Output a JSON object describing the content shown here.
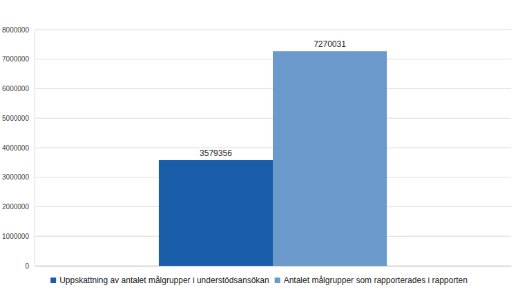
{
  "chart_data": {
    "type": "bar",
    "categories": [
      null
    ],
    "series": [
      {
        "name": "Uppskattning av antalet målgrupper i understödsansökan",
        "color": "#1a5ea9",
        "values": [
          3579356
        ]
      },
      {
        "name": "Antalet målgrupper som rapporterades i rapporten",
        "color": "#6b99cb",
        "values": [
          7270031
        ]
      }
    ],
    "ylim": [
      0,
      8000000
    ],
    "yticks": [
      0,
      1000000,
      2000000,
      3000000,
      4000000,
      5000000,
      6000000,
      7000000,
      8000000
    ],
    "grid": true,
    "data_labels": true,
    "legend": "bottom"
  }
}
